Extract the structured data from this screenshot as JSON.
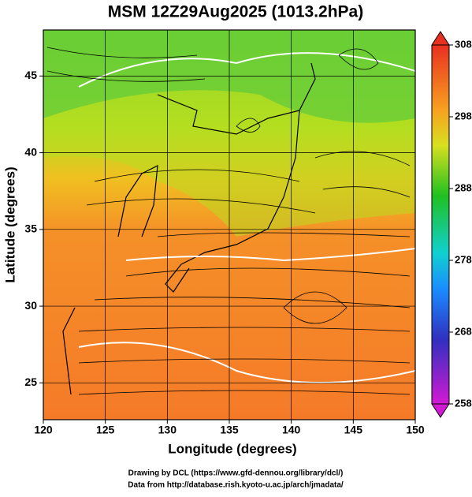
{
  "title": "MSM 12Z29Aug2025 (1013.2hPa)",
  "x_axis": {
    "label": "Longitude (degrees)",
    "range": [
      120,
      150
    ],
    "ticks": [
      120,
      125,
      130,
      135,
      140,
      145,
      150
    ]
  },
  "y_axis": {
    "label": "Latitude  (degrees)",
    "range": [
      22.6,
      48
    ],
    "ticks": [
      25,
      30,
      35,
      40,
      45
    ]
  },
  "colorbar": {
    "range": [
      258,
      308
    ],
    "ticks": [
      258,
      268,
      278,
      288,
      298,
      308
    ]
  },
  "credits": [
    "Drawing by DCL (https://www.gfd-dennou.org/library/dcl/)",
    "Data from http://database.rish.kyoto-u.ac.jp/arch/jmadata/"
  ]
}
